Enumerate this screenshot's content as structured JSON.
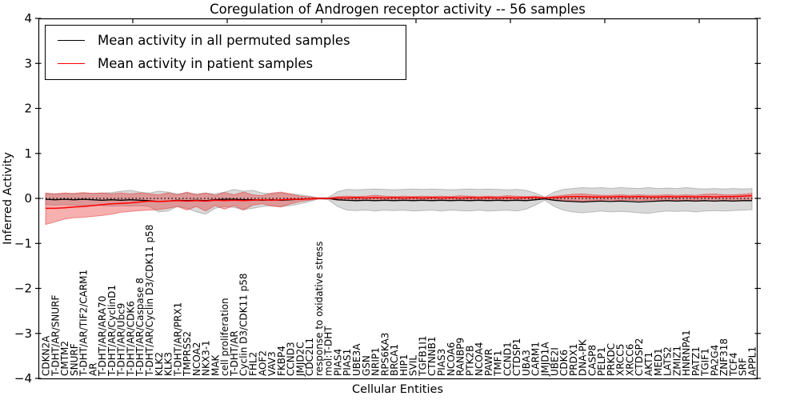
{
  "chart_data": {
    "type": "line",
    "title": "Coregulation of Androgen receptor activity -- 56 samples",
    "xlabel": "Cellular Entities",
    "ylabel": "Inferred Activity",
    "ylim": [
      -4,
      4
    ],
    "yticks": [
      4,
      3,
      2,
      1,
      0,
      -1,
      -2,
      -3,
      -4
    ],
    "grid": false,
    "legend_position": "upper left",
    "zero_line": "dotted",
    "categories": [
      "CDKN2A",
      "T-DHT/AR/SNURF",
      "CMTM2",
      "SNURF",
      "T-DHT/AR/TIF2/CARM1",
      "AR",
      "T-DHT/AR/ARA70",
      "T-DHT/AR/CyclinD1",
      "T-DHT/AR/Ubc9",
      "T-DHT/AR/CDK6",
      "T-DHT/AR/Caspase 8",
      "T-DHT/AR/Cyclin D3/CDK11 p58",
      "KLK2",
      "KLK3",
      "T-DHT/AR/PRX1",
      "TMPRSS2",
      "NCOA2",
      "NKX3-1",
      "MAK",
      "cell proliferation",
      "T-DHT/AR",
      "Cyclin D3/CDK11 p58",
      "FHL2",
      "AOF2",
      "VAV3",
      "FKBP4",
      "CCND3",
      "JMJD2C",
      "CDC2L1",
      "response to oxidative stress",
      "mol:T-DHT",
      "PIAS4",
      "PIAS1",
      "UBE3A",
      "GSN",
      "NRIP1",
      "RPS6KA3",
      "BRCA1",
      "HIP1",
      "SVIL",
      "TGFB1I1",
      "CTNNB1",
      "PIAS3",
      "NCOA6",
      "RANBP9",
      "PTK2B",
      "NCOA4",
      "PAWR",
      "TMF1",
      "CCND1",
      "CTDSP1",
      "UBA3",
      "CARM1",
      "JMJD1A",
      "UBE2I",
      "CDK6",
      "PRDX1",
      "DNA-PK",
      "CASP8",
      "PELP1",
      "PRKDC",
      "XRCC5",
      "XRCC6",
      "CTDSP2",
      "AKT1",
      "MED1",
      "LATS2",
      "ZMIZ1",
      "HNRNPA1",
      "PATZ1",
      "TGIF1",
      "PA2G4",
      "ZNF318",
      "TCF4",
      "SRF",
      "APPL1"
    ],
    "series": [
      {
        "name": "Mean activity in all permuted samples",
        "color": "#000000",
        "band_color": "#888888",
        "band_opacity": 0.32,
        "values": [
          -0.02,
          -0.03,
          -0.02,
          -0.03,
          -0.02,
          -0.03,
          -0.04,
          -0.03,
          -0.04,
          -0.03,
          -0.04,
          -0.05,
          -0.07,
          -0.06,
          -0.04,
          -0.05,
          -0.04,
          -0.05,
          -0.03,
          -0.02,
          -0.02,
          -0.03,
          -0.03,
          -0.04,
          -0.03,
          -0.04,
          -0.03,
          -0.02,
          -0.01,
          0,
          0,
          -0.03,
          -0.04,
          -0.05,
          -0.04,
          -0.05,
          -0.04,
          -0.05,
          -0.04,
          -0.05,
          -0.04,
          -0.05,
          -0.04,
          -0.05,
          -0.04,
          -0.05,
          -0.04,
          -0.05,
          -0.04,
          -0.05,
          -0.04,
          -0.05,
          -0.03,
          -0.01,
          -0.04,
          -0.06,
          -0.07,
          -0.08,
          -0.07,
          -0.06,
          -0.07,
          -0.06,
          -0.07,
          -0.08,
          -0.07,
          -0.06,
          -0.05,
          -0.06,
          -0.05,
          -0.06,
          -0.05,
          -0.06,
          -0.05,
          -0.06,
          -0.05,
          -0.05
        ],
        "band_upper": [
          0.1,
          0.1,
          0.11,
          0.1,
          0.12,
          0.11,
          0.12,
          0.13,
          0.16,
          0.18,
          0.14,
          0.12,
          0.16,
          0.14,
          0.1,
          0.12,
          0.1,
          0.12,
          0.1,
          0.14,
          0.2,
          0.16,
          0.18,
          0.12,
          0.1,
          0.12,
          0.1,
          0.08,
          0.05,
          0.01,
          0.02,
          0.15,
          0.2,
          0.19,
          0.2,
          0.21,
          0.2,
          0.19,
          0.2,
          0.21,
          0.2,
          0.21,
          0.2,
          0.19,
          0.2,
          0.21,
          0.2,
          0.21,
          0.2,
          0.19,
          0.2,
          0.18,
          0.12,
          0.03,
          0.14,
          0.2,
          0.22,
          0.24,
          0.23,
          0.24,
          0.22,
          0.24,
          0.23,
          0.22,
          0.24,
          0.22,
          0.23,
          0.22,
          0.24,
          0.22,
          0.21,
          0.22,
          0.21,
          0.22,
          0.21,
          0.22
        ],
        "band_lower": [
          -0.14,
          -0.15,
          -0.14,
          -0.15,
          -0.16,
          -0.15,
          -0.16,
          -0.17,
          -0.16,
          -0.17,
          -0.16,
          -0.18,
          -0.3,
          -0.28,
          -0.18,
          -0.22,
          -0.3,
          -0.35,
          -0.22,
          -0.18,
          -0.2,
          -0.25,
          -0.22,
          -0.18,
          -0.16,
          -0.18,
          -0.16,
          -0.12,
          -0.07,
          -0.01,
          -0.03,
          -0.18,
          -0.26,
          -0.27,
          -0.26,
          -0.28,
          -0.26,
          -0.27,
          -0.26,
          -0.28,
          -0.27,
          -0.26,
          -0.28,
          -0.26,
          -0.27,
          -0.28,
          -0.26,
          -0.28,
          -0.27,
          -0.26,
          -0.28,
          -0.24,
          -0.15,
          -0.04,
          -0.18,
          -0.26,
          -0.3,
          -0.32,
          -0.3,
          -0.28,
          -0.3,
          -0.29,
          -0.3,
          -0.32,
          -0.33,
          -0.3,
          -0.28,
          -0.29,
          -0.28,
          -0.3,
          -0.28,
          -0.27,
          -0.28,
          -0.27,
          -0.26,
          -0.25
        ]
      },
      {
        "name": "Mean activity in patient samples",
        "color": "#ff0000",
        "band_color": "#e83030",
        "band_opacity": 0.38,
        "values": [
          -0.22,
          -0.22,
          -0.21,
          -0.19,
          -0.18,
          -0.16,
          -0.14,
          -0.12,
          -0.11,
          -0.1,
          -0.08,
          -0.06,
          -0.07,
          -0.06,
          -0.05,
          -0.06,
          -0.05,
          -0.06,
          -0.04,
          -0.05,
          -0.04,
          -0.05,
          -0.04,
          -0.03,
          -0.04,
          -0.03,
          -0.02,
          -0.02,
          -0.01,
          0,
          0,
          0.01,
          0.01,
          0.02,
          0.01,
          0.02,
          0.01,
          0.02,
          0.01,
          0.02,
          0.01,
          0.02,
          0.01,
          0.02,
          0.01,
          0.02,
          0.01,
          0.02,
          0.01,
          0.02,
          0.01,
          0.02,
          0.02,
          0.01,
          0.02,
          0.03,
          0.04,
          0.04,
          0.03,
          0.03,
          0.03,
          0.04,
          0.03,
          0.04,
          0.03,
          0.03,
          0.04,
          0.03,
          0.04,
          0.03,
          0.04,
          0.03,
          0.04,
          0.04,
          0.05,
          0.06
        ],
        "band_upper": [
          0.12,
          0.1,
          0.12,
          0.11,
          0.13,
          0.11,
          0.12,
          0.1,
          0.12,
          0.1,
          0.12,
          0.1,
          0.08,
          0.12,
          0.08,
          0.14,
          0.08,
          0.12,
          0.07,
          0.13,
          0.08,
          0.14,
          0.08,
          0.06,
          0.12,
          0.14,
          0.1,
          0.05,
          0.03,
          0.01,
          0.01,
          0.04,
          0.05,
          0.04,
          0.05,
          0.07,
          0.05,
          0.04,
          0.05,
          0.04,
          0.05,
          0.04,
          0.05,
          0.04,
          0.06,
          0.05,
          0.04,
          0.05,
          0.04,
          0.06,
          0.05,
          0.04,
          0.05,
          0.02,
          0.05,
          0.07,
          0.09,
          0.1,
          0.08,
          0.07,
          0.07,
          0.08,
          0.07,
          0.08,
          0.07,
          0.07,
          0.08,
          0.07,
          0.08,
          0.07,
          0.09,
          0.1,
          0.08,
          0.08,
          0.09,
          0.11
        ],
        "band_lower": [
          -0.58,
          -0.52,
          -0.46,
          -0.43,
          -0.42,
          -0.4,
          -0.38,
          -0.35,
          -0.31,
          -0.29,
          -0.27,
          -0.26,
          -0.25,
          -0.22,
          -0.18,
          -0.26,
          -0.18,
          -0.28,
          -0.16,
          -0.24,
          -0.16,
          -0.26,
          -0.15,
          -0.12,
          -0.17,
          -0.19,
          -0.12,
          -0.07,
          -0.04,
          -0.01,
          -0.01,
          -0.04,
          -0.04,
          -0.03,
          -0.04,
          -0.05,
          -0.03,
          -0.04,
          -0.03,
          -0.04,
          -0.03,
          -0.04,
          -0.03,
          -0.04,
          -0.03,
          -0.04,
          -0.03,
          -0.04,
          -0.03,
          -0.04,
          -0.03,
          -0.04,
          -0.03,
          -0.01,
          -0.03,
          -0.04,
          -0.05,
          -0.06,
          -0.05,
          -0.04,
          -0.04,
          -0.05,
          -0.04,
          -0.05,
          -0.04,
          -0.04,
          -0.05,
          -0.04,
          -0.05,
          -0.04,
          -0.05,
          -0.06,
          -0.05,
          -0.05,
          -0.05,
          -0.04
        ]
      }
    ]
  }
}
